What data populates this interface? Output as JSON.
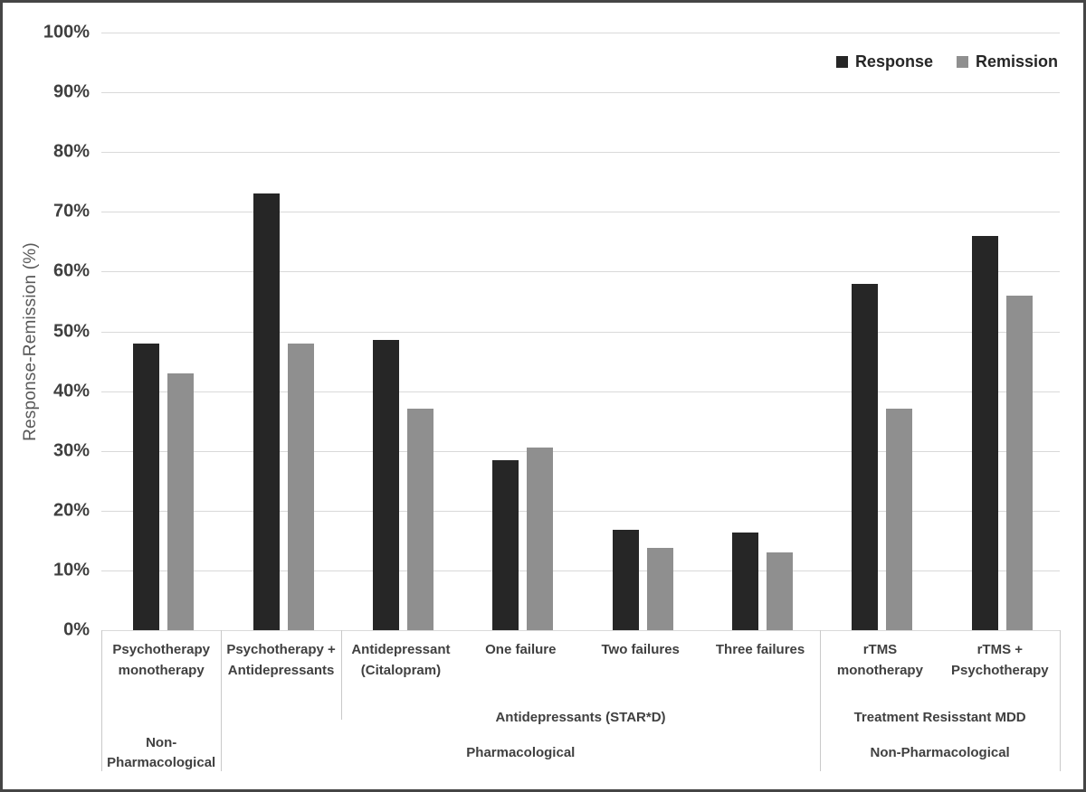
{
  "figure": {
    "background": "#ffffff",
    "border_color": "#454545"
  },
  "chart_data": {
    "type": "bar",
    "ylabel": "Response-Remission (%)",
    "xlabel": "",
    "ylim": [
      0,
      100
    ],
    "grid": true,
    "legend_position": "top-right",
    "y_axis": {
      "tick_values": [
        0,
        10,
        20,
        30,
        40,
        50,
        60,
        70,
        80,
        90,
        100
      ],
      "tick_labels": [
        "0%",
        "10%",
        "20%",
        "30%",
        "40%",
        "50%",
        "60%",
        "70%",
        "80%",
        "90%",
        "100%"
      ]
    },
    "categories": [
      "Psychotherapy\nmonotherapy",
      "Psychotherapy +\nAntidepressants",
      "Antidepressant\n(Citalopram)",
      "One failure",
      "Two failures",
      "Three failures",
      "rTMS\nmonotherapy",
      "rTMS +\nPsychotherapy"
    ],
    "series": [
      {
        "name": "Response",
        "color": "#262626",
        "values": [
          48,
          73,
          48.5,
          28.5,
          16.8,
          16.3,
          58,
          66
        ]
      },
      {
        "name": "Remission",
        "color": "#8f8f8f",
        "values": [
          43,
          48,
          37,
          30.5,
          13.7,
          13,
          37,
          56
        ]
      }
    ],
    "axis_groups": {
      "tier2": [
        {
          "label": "Antidepressants (STAR*D)",
          "start": 2,
          "end": 5
        },
        {
          "label": "Treatment Resisstant MDD",
          "start": 6,
          "end": 7
        }
      ],
      "tier3": [
        {
          "label": "Non-\nPharmacological",
          "start": 0,
          "end": 0
        },
        {
          "label": "Pharmacological",
          "start": 1,
          "end": 5
        },
        {
          "label": "Non-Pharmacological",
          "start": 6,
          "end": 7
        }
      ],
      "dividers": [
        {
          "boundary": 0,
          "extent": "full"
        },
        {
          "boundary": 1,
          "extent": "full"
        },
        {
          "boundary": 2,
          "extent": "partial"
        },
        {
          "boundary": 6,
          "extent": "full"
        },
        {
          "boundary": 8,
          "extent": "full"
        }
      ]
    },
    "colors": {
      "gridline": "#d9d9d9",
      "axis_line": "#c9c9c9",
      "tick_text": "#3f3f3f",
      "category_text": "#404040",
      "axis_title_text": "#595959"
    }
  }
}
